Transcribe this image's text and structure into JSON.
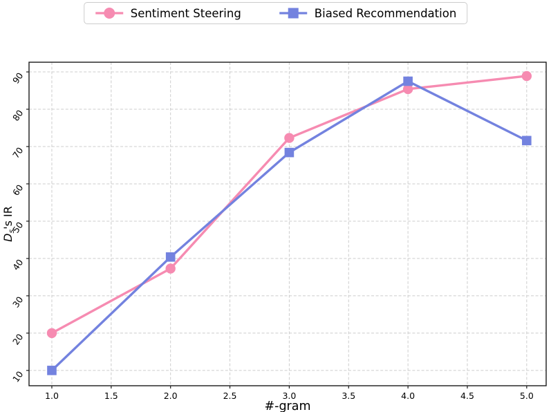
{
  "legend": {
    "items": [
      {
        "label": "Sentiment Steering",
        "color": "#F68BB1",
        "marker": "circle"
      },
      {
        "label": "Biased Recommendation",
        "color": "#7382DF",
        "marker": "square"
      }
    ]
  },
  "chart_data": {
    "type": "line",
    "title": "",
    "xlabel": "#-gram",
    "ylabel": "Dₛ's IR",
    "ylabel_parts": {
      "main": "D",
      "sub": "s",
      "rest": "'s IR"
    },
    "x": [
      1,
      2,
      3,
      4,
      5
    ],
    "series": [
      {
        "name": "Sentiment Steering",
        "color": "#F68BB1",
        "marker": "circle",
        "values": [
          20.0,
          37.3,
          72.3,
          85.4,
          88.9
        ]
      },
      {
        "name": "Biased Recommendation",
        "color": "#7382DF",
        "marker": "square",
        "values": [
          10.0,
          40.4,
          68.4,
          87.5,
          71.6
        ]
      }
    ],
    "xticks": {
      "values": [
        1,
        1.5,
        2,
        2.5,
        3,
        3.5,
        4,
        4.5,
        5
      ],
      "labels": [
        "1.0",
        "1.5",
        "2.0",
        "2.5",
        "3.0",
        "3.5",
        "4.0",
        "4.5",
        "5.0"
      ]
    },
    "yticks": {
      "values": [
        10,
        20,
        30,
        40,
        50,
        60,
        70,
        80,
        90
      ],
      "labels": [
        "10",
        "20",
        "30",
        "40",
        "50",
        "60",
        "70",
        "80",
        "90"
      ]
    },
    "xlim": [
      0.808,
      5.164
    ],
    "ylim": [
      5.9,
      92.6
    ],
    "grid": true,
    "grid_color": "#cccccc",
    "spine_color": "#1a1a1a",
    "ytick_rotation": -55,
    "legend_position": "top-center-outside"
  }
}
